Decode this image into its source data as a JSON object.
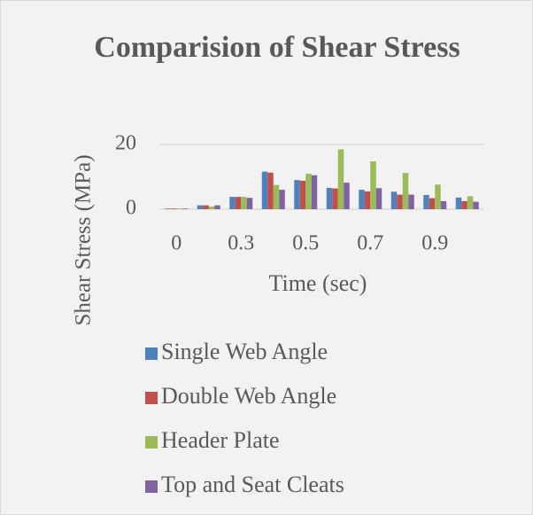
{
  "chart_data": {
    "type": "bar",
    "title": "Comparision of Shear Stress",
    "x_label": "Time (sec)",
    "y_label": "Shear Stress (MPa)",
    "categories": [
      "0",
      null,
      "0.3",
      null,
      "0.5",
      null,
      "0.7",
      null,
      "0.9",
      null
    ],
    "series": [
      {
        "name": "Single Web Angle",
        "color": "#4f81bd",
        "values": [
          0.2,
          1.2,
          3.8,
          11.6,
          9,
          6.6,
          6,
          5.4,
          4.4,
          3.6
        ]
      },
      {
        "name": "Double Web Angle",
        "color": "#c0504d",
        "values": [
          0.2,
          1.2,
          3.8,
          11.3,
          8.8,
          6.4,
          5.5,
          4.5,
          3.4,
          2.5
        ]
      },
      {
        "name": "Header Plate",
        "color": "#9bbb59",
        "values": [
          0.2,
          0.8,
          3.8,
          7.5,
          11,
          18.5,
          14.8,
          11.2,
          7.6,
          4
        ]
      },
      {
        "name": "Top and Seat Cleats",
        "color": "#8064a2",
        "values": [
          0.2,
          1.2,
          3.5,
          6,
          10.5,
          8.2,
          6.5,
          4.5,
          2.5,
          2.3
        ]
      }
    ],
    "ylim": [
      0,
      20
    ],
    "yticks": [
      0,
      20
    ],
    "grid": true,
    "legend": "bottom"
  }
}
